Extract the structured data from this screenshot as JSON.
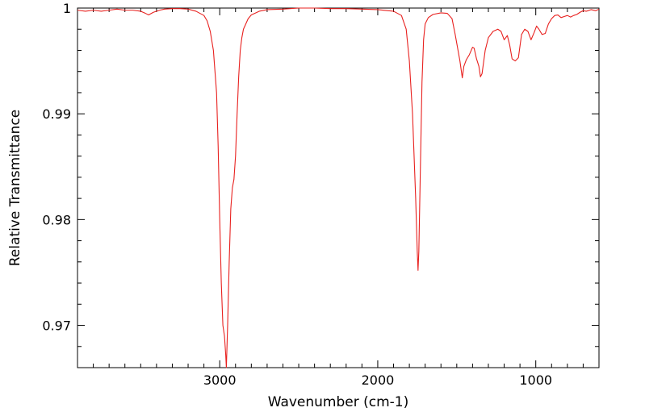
{
  "chart_data": {
    "type": "line",
    "title": "",
    "xlabel": "Wavenumber (cm-1)",
    "ylabel": "Relative Transmittance",
    "xlim": [
      3900,
      600
    ],
    "ylim": [
      0.966,
      1.0
    ],
    "x_reversed": true,
    "grid": false,
    "x_ticks": [
      {
        "value": 3000,
        "label": "3000"
      },
      {
        "value": 2000,
        "label": "2000"
      },
      {
        "value": 1000,
        "label": "1000"
      }
    ],
    "y_ticks": [
      {
        "value": 1.0,
        "label": "1"
      },
      {
        "value": 0.99,
        "label": "0.99"
      },
      {
        "value": 0.98,
        "label": "0.98"
      },
      {
        "value": 0.97,
        "label": "0.97"
      }
    ],
    "series": [
      {
        "color": "#e8211f",
        "points": [
          [
            3900,
            0.9998
          ],
          [
            3850,
            0.9997
          ],
          [
            3800,
            0.9998
          ],
          [
            3750,
            0.9997
          ],
          [
            3700,
            0.9998
          ],
          [
            3650,
            0.9999
          ],
          [
            3600,
            0.9998
          ],
          [
            3550,
            0.9998
          ],
          [
            3500,
            0.9997
          ],
          [
            3470,
            0.9995
          ],
          [
            3450,
            0.99935
          ],
          [
            3420,
            0.9996
          ],
          [
            3380,
            0.9998
          ],
          [
            3350,
            0.9999
          ],
          [
            3300,
            0.99995
          ],
          [
            3250,
            0.99995
          ],
          [
            3200,
            0.9999
          ],
          [
            3150,
            0.9997
          ],
          [
            3100,
            0.9993
          ],
          [
            3080,
            0.9988
          ],
          [
            3060,
            0.9978
          ],
          [
            3040,
            0.996
          ],
          [
            3020,
            0.992
          ],
          [
            3010,
            0.987
          ],
          [
            3000,
            0.98
          ],
          [
            2990,
            0.974
          ],
          [
            2980,
            0.97
          ],
          [
            2970,
            0.969
          ],
          [
            2962,
            0.9672
          ],
          [
            2958,
            0.966
          ],
          [
            2950,
            0.97
          ],
          [
            2940,
            0.976
          ],
          [
            2930,
            0.981
          ],
          [
            2920,
            0.983
          ],
          [
            2910,
            0.9838
          ],
          [
            2900,
            0.986
          ],
          [
            2890,
            0.99
          ],
          [
            2880,
            0.9935
          ],
          [
            2870,
            0.996
          ],
          [
            2860,
            0.9972
          ],
          [
            2850,
            0.998
          ],
          [
            2820,
            0.999
          ],
          [
            2800,
            0.99935
          ],
          [
            2750,
            0.9997
          ],
          [
            2700,
            0.99985
          ],
          [
            2600,
            0.9999
          ],
          [
            2500,
            1.0
          ],
          [
            2400,
            1.0
          ],
          [
            2300,
            0.99995
          ],
          [
            2200,
            0.99995
          ],
          [
            2100,
            0.9999
          ],
          [
            2000,
            0.99985
          ],
          [
            1900,
            0.9997
          ],
          [
            1850,
            0.9993
          ],
          [
            1820,
            0.998
          ],
          [
            1800,
            0.995
          ],
          [
            1780,
            0.99
          ],
          [
            1760,
            0.982
          ],
          [
            1750,
            0.977
          ],
          [
            1745,
            0.9752
          ],
          [
            1740,
            0.977
          ],
          [
            1730,
            0.985
          ],
          [
            1720,
            0.993
          ],
          [
            1710,
            0.997
          ],
          [
            1700,
            0.9985
          ],
          [
            1680,
            0.9991
          ],
          [
            1650,
            0.9994
          ],
          [
            1600,
            0.99955
          ],
          [
            1560,
            0.9995
          ],
          [
            1530,
            0.999
          ],
          [
            1510,
            0.9975
          ],
          [
            1480,
            0.995
          ],
          [
            1465,
            0.9934
          ],
          [
            1455,
            0.9945
          ],
          [
            1440,
            0.9951
          ],
          [
            1420,
            0.9956
          ],
          [
            1400,
            0.9963
          ],
          [
            1390,
            0.9962
          ],
          [
            1375,
            0.9952
          ],
          [
            1360,
            0.9945
          ],
          [
            1350,
            0.9935
          ],
          [
            1340,
            0.9938
          ],
          [
            1320,
            0.996
          ],
          [
            1300,
            0.9972
          ],
          [
            1270,
            0.9978
          ],
          [
            1240,
            0.998
          ],
          [
            1220,
            0.9978
          ],
          [
            1200,
            0.997
          ],
          [
            1180,
            0.9974
          ],
          [
            1165,
            0.9965
          ],
          [
            1150,
            0.9952
          ],
          [
            1130,
            0.995
          ],
          [
            1110,
            0.9953
          ],
          [
            1090,
            0.9975
          ],
          [
            1070,
            0.998
          ],
          [
            1050,
            0.9978
          ],
          [
            1030,
            0.997
          ],
          [
            1010,
            0.9977
          ],
          [
            995,
            0.9983
          ],
          [
            980,
            0.998
          ],
          [
            960,
            0.9975
          ],
          [
            940,
            0.9976
          ],
          [
            920,
            0.9985
          ],
          [
            900,
            0.999
          ],
          [
            880,
            0.9993
          ],
          [
            860,
            0.99935
          ],
          [
            840,
            0.9991
          ],
          [
            820,
            0.9992
          ],
          [
            800,
            0.9993
          ],
          [
            780,
            0.99915
          ],
          [
            760,
            0.9993
          ],
          [
            740,
            0.9994
          ],
          [
            720,
            0.9996
          ],
          [
            700,
            0.99975
          ],
          [
            680,
            0.9997
          ],
          [
            650,
            0.99985
          ],
          [
            620,
            0.99975
          ],
          [
            600,
            0.9999
          ]
        ]
      }
    ]
  }
}
